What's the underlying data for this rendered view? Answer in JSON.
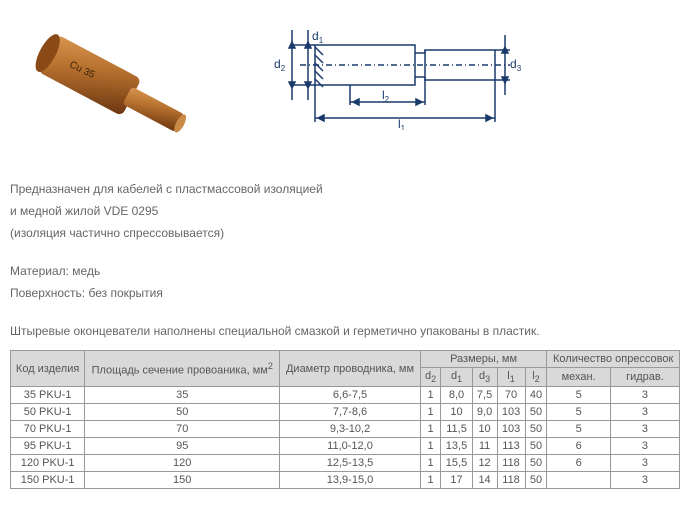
{
  "description": {
    "line1": "Предназначен для кабелей с пластмассовой изоляцией",
    "line2": "и медной жилой VDE 0295",
    "line3": "(изоляция частично спрессовывается)",
    "material": "Материал: медь",
    "surface": "Поверхность: без покрытия",
    "note": "Штыревые оконцеватели наполнены специальной смазкой и герметично упакованы в пластик."
  },
  "diagram_labels": {
    "d1": "d",
    "d1_sub": "1",
    "d2": "d",
    "d2_sub": "2",
    "d3": "d",
    "d3_sub": "3",
    "l1": "l",
    "l1_sub": "1",
    "l2": "l",
    "l2_sub": "2"
  },
  "table": {
    "headers": {
      "code": "Код изделия",
      "area": "Площадь сечение провоаника, мм",
      "area_sup": "2",
      "diameter": "Диаметр проводника, мм",
      "sizes": "Размеры, мм",
      "d2": "d",
      "d2_sub": "2",
      "d1": "d",
      "d1_sub": "1",
      "d3": "d",
      "d3_sub": "3",
      "l1": "l",
      "l1_sub": "1",
      "l2": "l",
      "l2_sub": "2",
      "presses": "Количество опрессовок",
      "mech": "механ.",
      "hydr": "гидрав."
    },
    "rows": [
      {
        "code": "35 PKU-1",
        "area": "35",
        "dia": "6,6-7,5",
        "d2": "1",
        "d1": "8,0",
        "d3": "7,5",
        "l1": "70",
        "l2": "40",
        "mech": "5",
        "hydr": "3"
      },
      {
        "code": "50 PKU-1",
        "area": "50",
        "dia": "7,7-8,6",
        "d2": "1",
        "d1": "10",
        "d3": "9,0",
        "l1": "103",
        "l2": "50",
        "mech": "5",
        "hydr": "3"
      },
      {
        "code": "70 PKU-1",
        "area": "70",
        "dia": "9,3-10,2",
        "d2": "1",
        "d1": "11,5",
        "d3": "10",
        "l1": "103",
        "l2": "50",
        "mech": "5",
        "hydr": "3"
      },
      {
        "code": "95 PKU-1",
        "area": "95",
        "dia": "11,0-12,0",
        "d2": "1",
        "d1": "13,5",
        "d3": "11",
        "l1": "113",
        "l2": "50",
        "mech": "6",
        "hydr": "3"
      },
      {
        "code": "120 PKU-1",
        "area": "120",
        "dia": "12,5-13,5",
        "d2": "1",
        "d1": "15,5",
        "d3": "12",
        "l1": "118",
        "l2": "50",
        "mech": "6",
        "hydr": "3"
      },
      {
        "code": "150 PKU-1",
        "area": "150",
        "dia": "13,9-15,0",
        "d2": "1",
        "d1": "17",
        "d3": "14",
        "l1": "118",
        "l2": "50",
        "mech": "",
        "hydr": "3"
      }
    ]
  },
  "colors": {
    "photo_copper": "#b8722f",
    "photo_copper_dark": "#7a3e12",
    "diagram_stroke": "#1a3a6b",
    "header_bg": "#d9d9d9",
    "text": "#666666",
    "border": "#999999"
  }
}
